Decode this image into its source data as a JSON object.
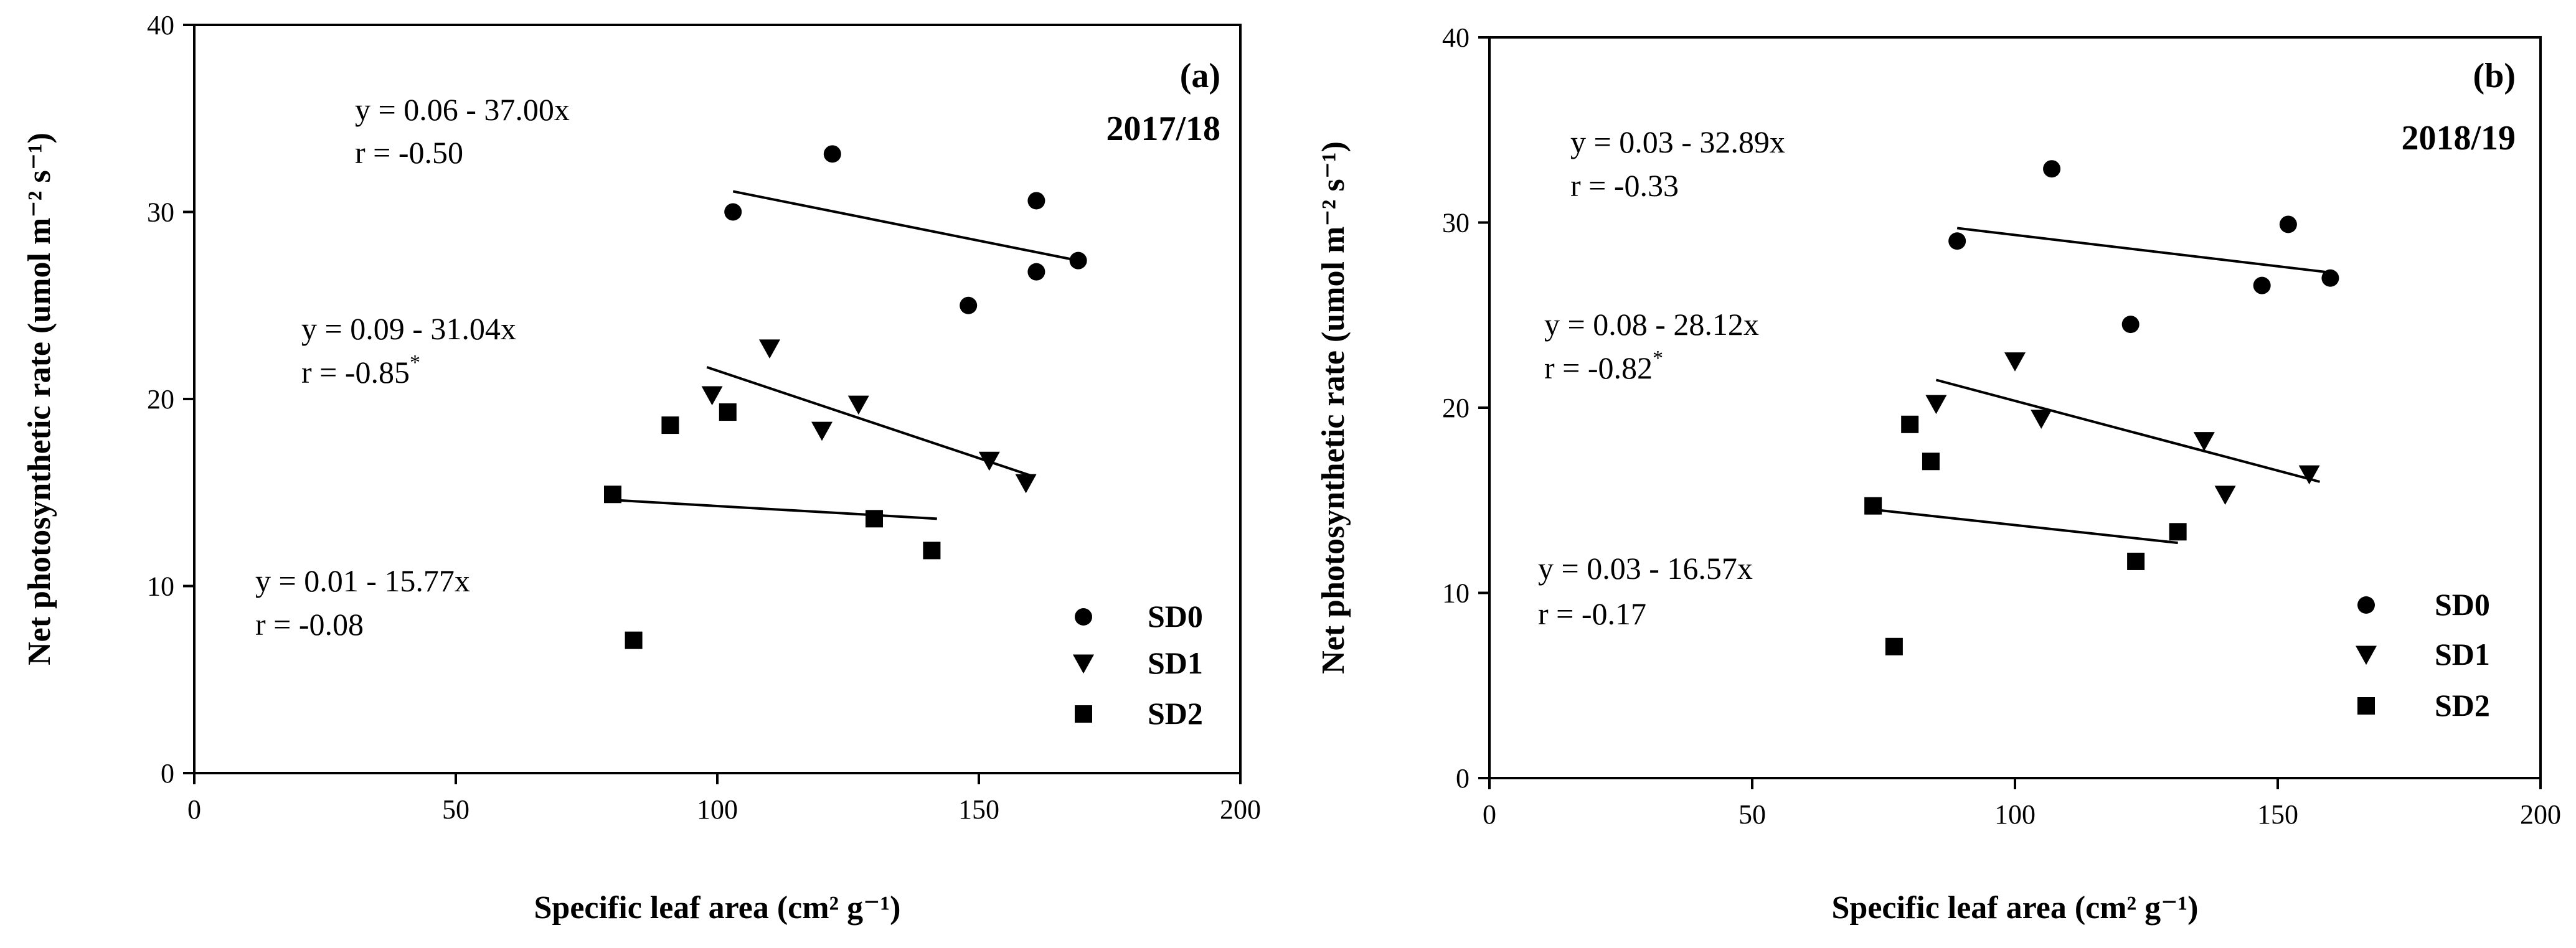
{
  "chart_data": [
    {
      "type": "scatter",
      "panel": "(a)",
      "season": "2017/18",
      "xlabel": "Specific leaf area (cm² g⁻¹)",
      "ylabel": "Net photosynthetic rate (umol m⁻² s⁻¹)",
      "xlim": [
        0,
        200
      ],
      "ylim": [
        0,
        40
      ],
      "xticks": [
        "0",
        "50",
        "100",
        "150",
        "200"
      ],
      "yticks": [
        "0",
        "10",
        "20",
        "30",
        "40"
      ],
      "series": [
        {
          "name": "SD0",
          "marker": "circle",
          "points": [
            [
              103,
              30.0
            ],
            [
              122,
              33.1
            ],
            [
              148,
              25.0
            ],
            [
              161,
              30.6
            ],
            [
              161,
              26.8
            ],
            [
              169,
              27.4
            ]
          ],
          "fit": {
            "x": [
              103,
              169
            ],
            "y": [
              31.1,
              27.4
            ]
          },
          "equation": "y = 0.06 - 37.00x",
          "r": "r = -0.50",
          "r_star": ""
        },
        {
          "name": "SD1",
          "marker": "triangle-down",
          "points": [
            [
              99,
              20.2
            ],
            [
              110,
              22.7
            ],
            [
              120,
              18.3
            ],
            [
              127,
              19.7
            ],
            [
              152,
              16.7
            ],
            [
              159,
              15.5
            ]
          ],
          "fit": {
            "x": [
              98,
              160
            ],
            "y": [
              21.7,
              15.9
            ]
          },
          "equation": "y = 0.09 - 31.04x",
          "r": "r = -0.85",
          "r_star": "*"
        },
        {
          "name": "SD2",
          "marker": "square",
          "points": [
            [
              80,
              14.9
            ],
            [
              84,
              7.1
            ],
            [
              91,
              18.6
            ],
            [
              102,
              19.3
            ],
            [
              130,
              13.6
            ],
            [
              141,
              11.9
            ]
          ],
          "fit": {
            "x": [
              80,
              142
            ],
            "y": [
              14.6,
              13.6
            ]
          },
          "equation": "y = 0.01 - 15.77x",
          "r": "r = -0.08",
          "r_star": ""
        }
      ],
      "legend": [
        "SD0",
        "SD1",
        "SD2"
      ]
    },
    {
      "type": "scatter",
      "panel": "(b)",
      "season": "2018/19",
      "xlabel": "Specific leaf area (cm² g⁻¹)",
      "ylabel": "Net photosynthetic rate (umol m⁻² s⁻¹)",
      "xlim": [
        0,
        200
      ],
      "ylim": [
        0,
        40
      ],
      "xticks": [
        "0",
        "50",
        "100",
        "150",
        "200"
      ],
      "yticks": [
        "0",
        "10",
        "20",
        "30",
        "40"
      ],
      "series": [
        {
          "name": "SD0",
          "marker": "circle",
          "points": [
            [
              89,
              29.0
            ],
            [
              107,
              32.9
            ],
            [
              122,
              24.5
            ],
            [
              147,
              26.6
            ],
            [
              152,
              29.9
            ],
            [
              160,
              27.0
            ]
          ],
          "fit": {
            "x": [
              89,
              160
            ],
            "y": [
              29.7,
              27.3
            ]
          },
          "equation": "y = 0.03 - 32.89x",
          "r": "r = -0.33",
          "r_star": ""
        },
        {
          "name": "SD1",
          "marker": "triangle-down",
          "points": [
            [
              85,
              20.2
            ],
            [
              100,
              22.5
            ],
            [
              105,
              19.4
            ],
            [
              136,
              18.2
            ],
            [
              140,
              15.3
            ],
            [
              156,
              16.4
            ]
          ],
          "fit": {
            "x": [
              85,
              158
            ],
            "y": [
              21.5,
              16.0
            ]
          },
          "equation": "y = 0.08 - 28.12x",
          "r": "r = -0.82",
          "r_star": "*"
        },
        {
          "name": "SD2",
          "marker": "square",
          "points": [
            [
              73,
              14.7
            ],
            [
              77,
              7.1
            ],
            [
              80,
              19.1
            ],
            [
              84,
              17.1
            ],
            [
              123,
              11.7
            ],
            [
              131,
              13.3
            ]
          ],
          "fit": {
            "x": [
              73,
              131
            ],
            "y": [
              14.5,
              12.7
            ]
          },
          "equation": "y = 0.03 - 16.57x",
          "r": "r = -0.17",
          "r_star": ""
        }
      ],
      "legend": [
        "SD0",
        "SD1",
        "SD2"
      ]
    }
  ]
}
